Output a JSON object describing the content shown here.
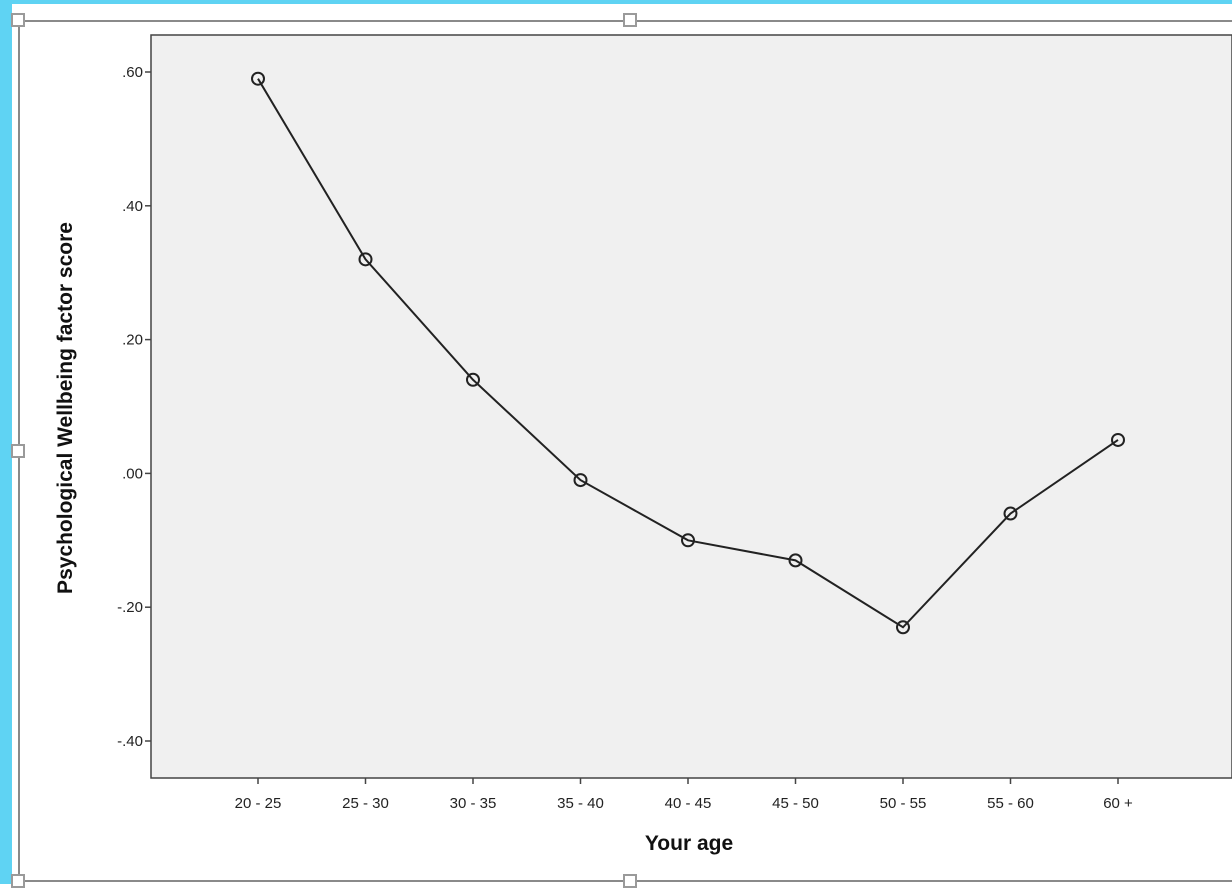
{
  "colors": {
    "frame_accent": "#5fd3f3",
    "plot_background": "#f0f0f0",
    "series_line": "#222222"
  },
  "chart_data": {
    "type": "line",
    "title": "",
    "xlabel": "Your age",
    "ylabel": "Psychological Wellbeing factor score",
    "categories": [
      "20 - 25",
      "25 - 30",
      "30 - 35",
      "35 - 40",
      "40 - 45",
      "45 - 50",
      "50 - 55",
      "55 - 60",
      "60 +"
    ],
    "values": [
      0.59,
      0.32,
      0.14,
      -0.01,
      -0.1,
      -0.13,
      -0.23,
      -0.06,
      0.05
    ],
    "ylim": [
      -0.46,
      0.66
    ],
    "yticks": [
      0.6,
      0.4,
      0.2,
      0.0,
      -0.2,
      -0.4
    ],
    "ytick_labels": [
      ".60",
      ".40",
      ".20",
      ".00",
      "-.20",
      "-.40"
    ],
    "marker": "open-circle",
    "grid": false,
    "legend": "none"
  }
}
